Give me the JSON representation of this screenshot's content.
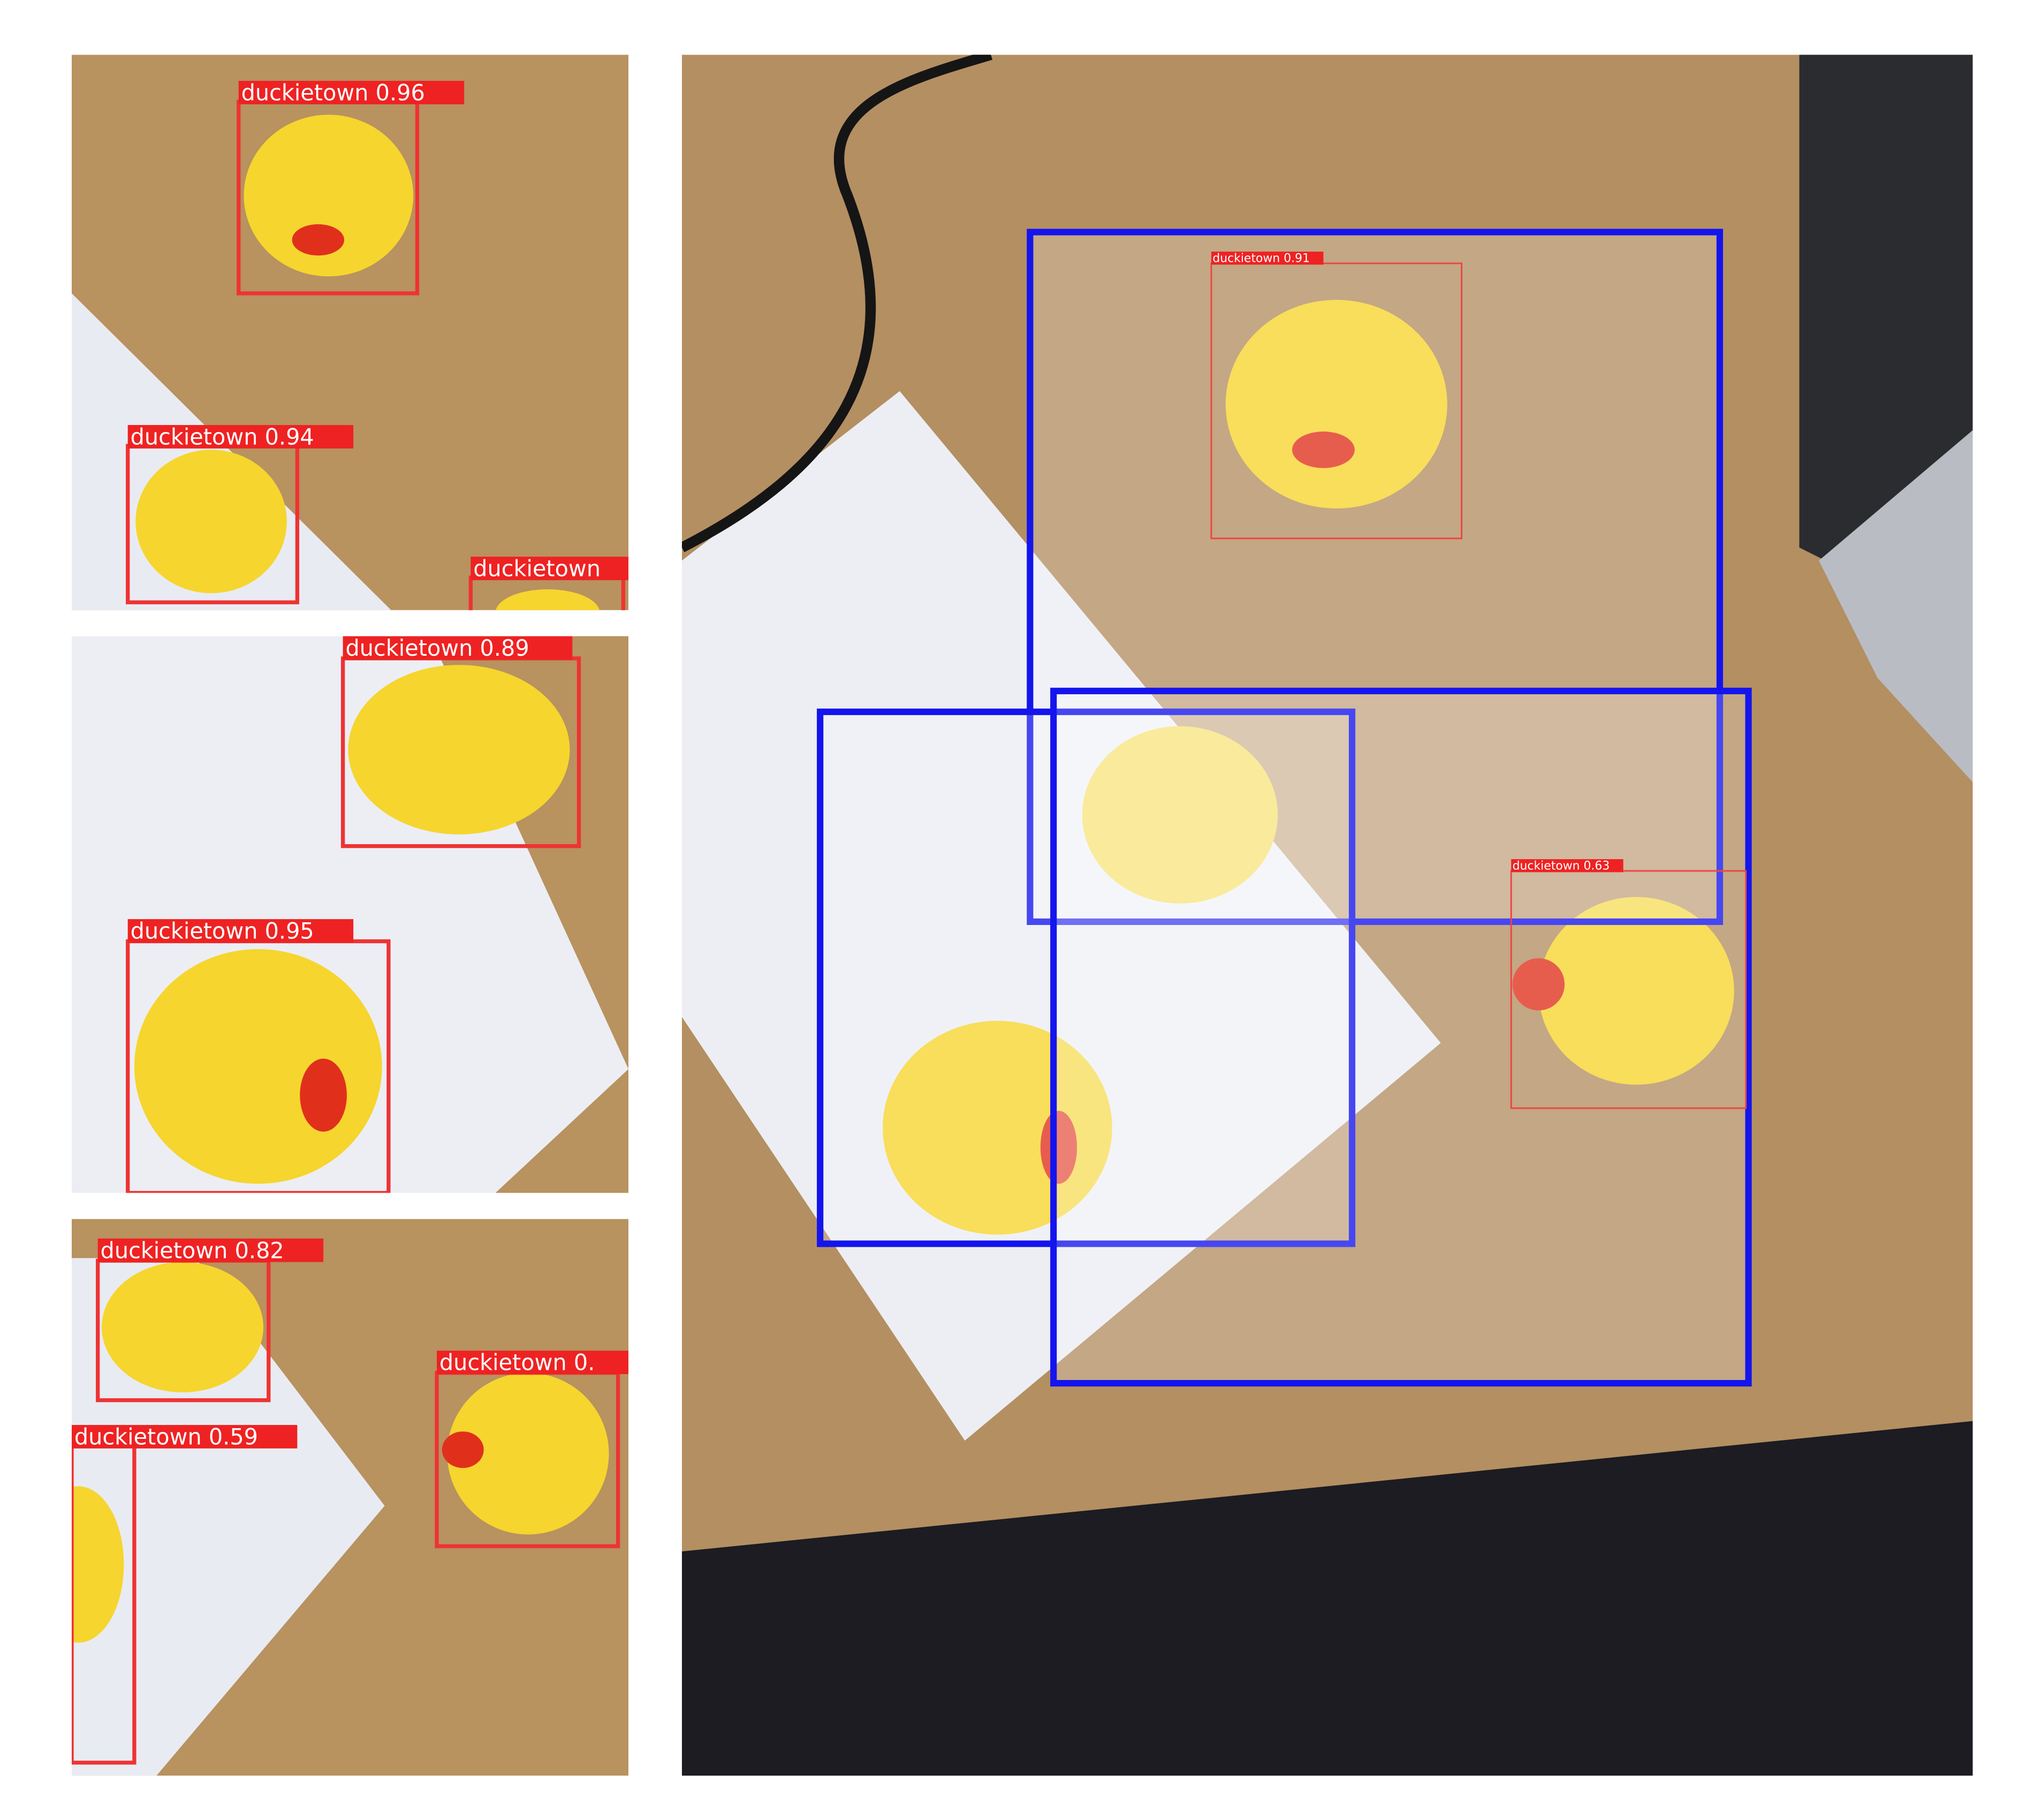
{
  "panels": [
    {
      "detections": [
        {
          "label": "duckietown 0.96"
        },
        {
          "label": "duckietown 0.94"
        },
        {
          "label": "duckietown"
        }
      ]
    },
    {
      "detections": [
        {
          "label": "duckietown 0.89"
        },
        {
          "label": "duckietown 0.95"
        }
      ]
    },
    {
      "detections": [
        {
          "label": "duckietown 0.82"
        },
        {
          "label": "duckietown 0.59"
        },
        {
          "label": "duckietown 0."
        }
      ]
    },
    {
      "detections": [
        {
          "label": "duckietown 0.91"
        },
        {
          "label": "duckietown 0.63"
        }
      ]
    }
  ]
}
